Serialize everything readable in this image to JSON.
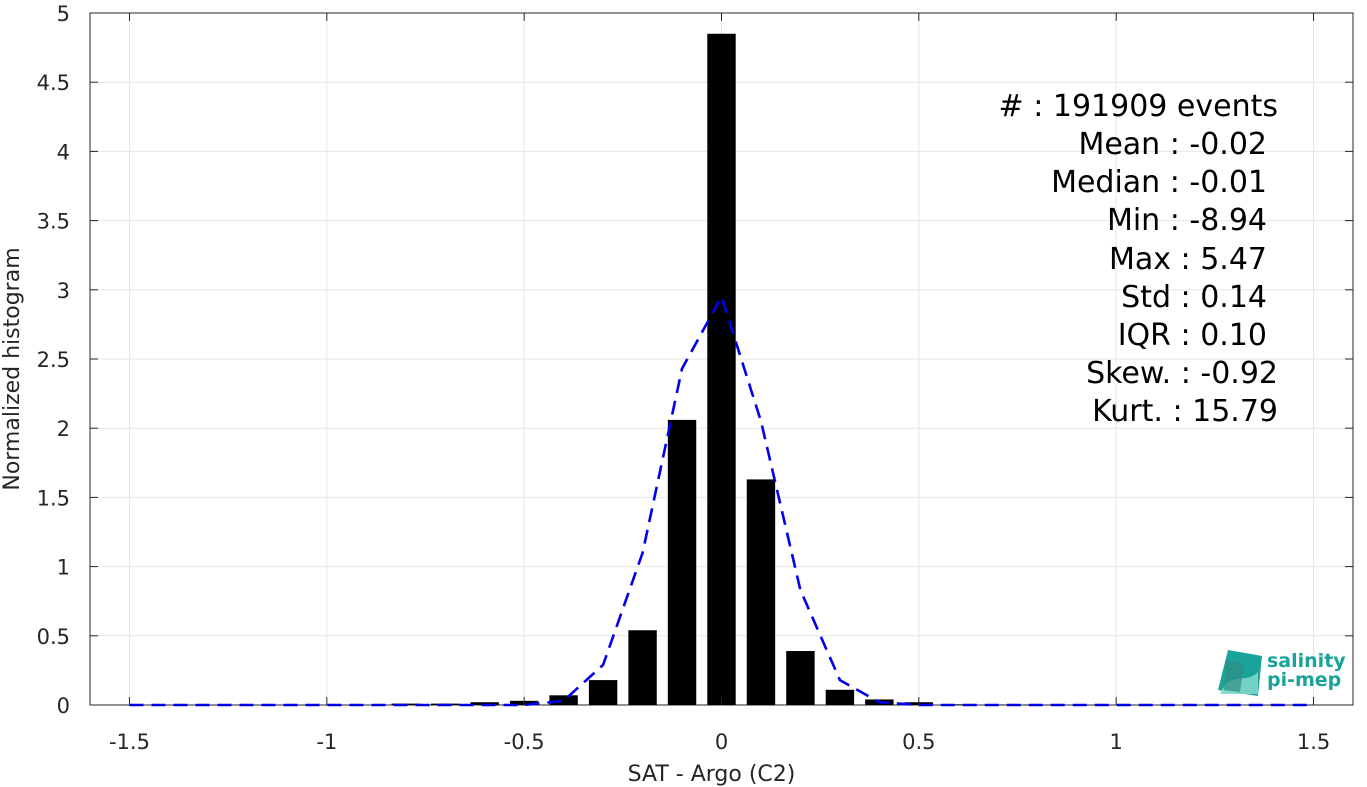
{
  "chart_data": {
    "type": "bar",
    "xlabel": "SAT - Argo (C2)",
    "ylabel": "Normalized histogram",
    "xlim": [
      -1.6,
      1.6
    ],
    "ylim": [
      0,
      5
    ],
    "grid": true,
    "x_ticks": [
      -1.5,
      -1,
      -0.5,
      0,
      0.5,
      1,
      1.5
    ],
    "x_tick_labels": [
      "-1.5",
      "-1",
      "-0.5",
      "0",
      "0.5",
      "1",
      "1.5"
    ],
    "y_ticks": [
      0,
      0.5,
      1,
      1.5,
      2,
      2.5,
      3,
      3.5,
      4,
      4.5,
      5
    ],
    "y_tick_labels": [
      "0",
      "0.5",
      "1",
      "1.5",
      "2",
      "2.5",
      "3",
      "3.5",
      "4",
      "4.5",
      "5"
    ],
    "series": [
      {
        "type": "bar",
        "color": "#000000",
        "x": [
          -1.5,
          -1.4,
          -1.3,
          -1.2,
          -1.1,
          -1.0,
          -0.9,
          -0.8,
          -0.7,
          -0.6,
          -0.5,
          -0.4,
          -0.3,
          -0.2,
          -0.1,
          0.0,
          0.1,
          0.2,
          0.3,
          0.4,
          0.5,
          0.6,
          0.7,
          0.8,
          0.9,
          1.0,
          1.1,
          1.2,
          1.3,
          1.4,
          1.5
        ],
        "values": [
          0.0,
          0.0,
          0.0,
          0.0,
          0.0,
          0.0,
          0.0,
          0.01,
          0.01,
          0.02,
          0.03,
          0.07,
          0.18,
          0.54,
          2.06,
          4.85,
          1.63,
          0.39,
          0.11,
          0.04,
          0.02,
          0.005,
          0.003,
          0.002,
          0.0,
          0.0,
          0.0,
          0.0,
          0.0,
          0.0,
          0.0
        ]
      },
      {
        "type": "line",
        "color": "#0000ee",
        "style": "dashed",
        "x": [
          -1.5,
          -1.4,
          -1.3,
          -1.2,
          -1.1,
          -1.0,
          -0.9,
          -0.8,
          -0.7,
          -0.6,
          -0.5,
          -0.4,
          -0.3,
          -0.2,
          -0.1,
          0.0,
          0.1,
          0.2,
          0.3,
          0.4,
          0.5,
          0.6,
          0.7,
          0.8,
          0.9,
          1.0,
          1.1,
          1.2,
          1.3,
          1.4,
          1.5
        ],
        "values": [
          0.0,
          0.0,
          0.0,
          0.0,
          0.0,
          0.0,
          0.0,
          0.0,
          0.0,
          0.0,
          0.0,
          0.03,
          0.29,
          1.1,
          2.43,
          2.95,
          2.05,
          0.83,
          0.18,
          0.02,
          0.0,
          0.0,
          0.0,
          0.0,
          0.0,
          0.0,
          0.0,
          0.0,
          0.0,
          0.0,
          0.0
        ]
      }
    ],
    "annotations": [
      "#  : 191909 events",
      "Mean : -0.02",
      "Median : -0.01",
      "Min : -8.94",
      "Max : 5.47",
      "Std : 0.14",
      "IQR : 0.10",
      "Skew. : -0.92",
      "Kurt. : 15.79"
    ]
  },
  "logo": {
    "line1": "salinity",
    "line2": "pi-mep",
    "colors": [
      "#1aa39a",
      "#7fd6c8",
      "#2f8f86"
    ]
  }
}
